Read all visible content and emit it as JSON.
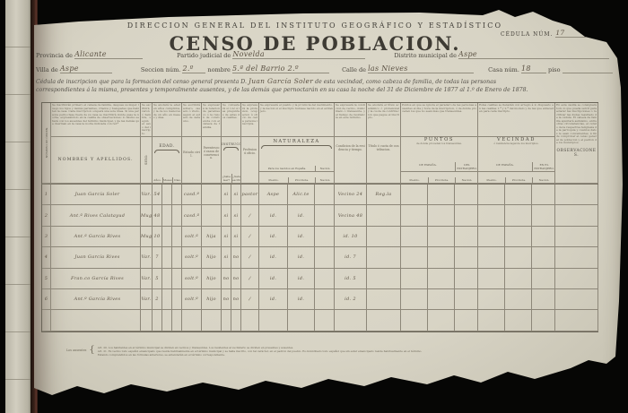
{
  "header": {
    "agency": "DIRECCION GENERAL DEL INSTITUTO GEOGRÁFICO Y ESTADÍSTICO",
    "title": "CENSO DE POBLACION.",
    "cedula_label": "CÉDULA NÚM.",
    "cedula_value": "17"
  },
  "fields": {
    "provincia_label": "Provincia de",
    "provincia_value": "Alicante",
    "partido_label": "Partido judicial de",
    "partido_value": "Novelda",
    "distrito_label": "Distrito municipal de",
    "distrito_value": "Aspe",
    "villa_label": "Villa de",
    "villa_value": "Aspe",
    "seccion_label": "Seccion núm.",
    "seccion_value": "2.º",
    "nombre_label": "nombre",
    "nombre_value": "5.ª del Barrio 2.º",
    "calle_label": "Calle de",
    "calle_value": "las Nieves",
    "casa_label": "Casa núm.",
    "casa_value": "18",
    "piso_label": "piso",
    "piso_value": ""
  },
  "declaration": {
    "line1_pre": "Cédula de inscripcion que para la formacion del censo general presenta D.",
    "name": "Juan García Soler",
    "line1_post": "de esta vecindad, como cabeza de familia, de todas las personas",
    "line2": "correspondientes á la misma, presentes y temporalmente ausentes, y de las demás que pernoctarán en su casa la noche del 31 de Diciembre de 1877 al 1.º de Enero de 1878."
  },
  "table": {
    "head": {
      "num_vert": "NÚMERO DE ÓRDEN.",
      "nombres": "NOMBRES Y APELLIDOS.",
      "sexo": "SEXO.",
      "edad": "EDAD.",
      "anos": "Años.",
      "meses": "Meses.",
      "dias": "Dias.",
      "estado": "Estado civil.",
      "parentesco": "Parentesco ó razon de convivencia.",
      "instruccion": "INSTRUCCION",
      "leer": "¿Sabe leer?",
      "escribir": "¿Sabe escribir?",
      "profesion": "Profesion ú oficio.",
      "naturaleza": "NATURALEZA",
      "nat_espana": "Para los nacidos en España.",
      "nat_pueblo": "Pueblo.",
      "nat_provincia": "Provincia.",
      "nat_nacion": "Nacion.",
      "residencia": "Condicion de la residencia y tiempo.",
      "extra": "Título ó cuota de contribucion.",
      "puntos": "PUNTOS",
      "puntos_sub": "de donde proceden los transeuntes.",
      "p_espana": "DE ESPAÑA.",
      "p_extr": "DEL EXTRANJERO.",
      "p_pueblo": "Pueblo.",
      "p_provincia": "Provincia.",
      "p_nacion": "Nacion.",
      "vecindad": "VECINDAD",
      "vecindad_sub": "ó residencia legal de los inscriptos.",
      "v_espana": "DE ESPAÑA.",
      "v_extr": "EN EL EXTRANJERO.",
      "v_pueblo": "Pueblo.",
      "v_provincia": "Provincia.",
      "v_nacion": "Nacion.",
      "observaciones": "OBSERVACIONES."
    },
    "instructions": {
      "nombres": "Se inscribirán primero el cabeza de familia, despues su mujer, luego los hijos y demás parientes, criados y huéspedes que habiten la casa. Cada inscripcion ocupará una sola línea. Si una persona pernoctase fuera de su casa se inscribirá donde pase la noche, expresándolo en la casilla de observaciones; lo mismo se hará con los ausentes del término municipal, y de las demás que duerman en la casa la noche indicada con ref.ª",
      "sexo": "Se escribirá varon ó hembra, segun el sexo del inscripto.",
      "edad": "Se anotará la edad en años cumplidos, y la de los menores de un año en meses y dias.",
      "estado": "Se escribirá soltero, casado ó viudo, segun el estado de cada uno.",
      "parentesco": "Se expresará la relacion de parentesco ó la razon de convivencia con el cabeza de familia.",
      "instruccion": "Se contestará sí ó nó á las preguntas de estas dos casillas.",
      "profesion": "Se expresará la profesion, ocupacion ú oficio de cada persona inscripta.",
      "naturaleza": "Se expresará el pueblo y la provincia del nacimiento, y la nacion si el inscripto hubiese nacido en el extranjero.",
      "residencia": "Se expresará la condicion de vecino, domiciliado ó transeunte, y el tiempo de residencia en este término.",
      "extra": "Se anotará el título académico ó profesional y la cuota de contribucion que pague el inscripto.",
      "puntos": "Puntos en que se ignora el paradero de las personas ausentes el dia y hora de la inscripcion, ó de donde proceden los que no sean más que transeuntes.",
      "vecindad": "Estas casillas se llenarán con arreglo á lo dispuesto en las casillas 1.ª y 2.ª del modelo y de las que anteceden para cada inscripto.",
      "observaciones": "En esta casilla se consignará todo lo que pueda servir para aclarar las inscripciones ó rectificar las dudas resultado de la cédula. El cabeza de familia apuntará asimismo, entre otras circunstancias, el curato de la respectiva feligresía de la parroquia y cuantos datos le sean convenientes, á fin de comprobar el censo general de poblacion y el padron de los municipios."
    },
    "rows": [
      {
        "cells": [
          "1",
          "Juan García Soler",
          "Var.",
          "54",
          "",
          "",
          "casd.º",
          "",
          "si",
          "si",
          "pastor",
          "Aspe",
          "Alic.te",
          "",
          "Vecino 24",
          "Reg.la",
          "",
          "",
          "",
          "",
          "",
          "",
          ""
        ]
      },
      {
        "cells": [
          "2",
          "Ant.ª Rives Calatayud",
          "Mug.",
          "48",
          "",
          "",
          "casd.ª",
          "",
          "si",
          "si",
          "∕",
          "id.",
          "id.",
          "",
          "Vecina 48",
          "",
          "",
          "",
          "",
          "",
          "",
          "",
          ""
        ]
      },
      {
        "cells": [
          "3",
          "Ant.ª García Rives",
          "Mug.",
          "10",
          "",
          "",
          "solt.ª",
          "hija",
          "si",
          "si",
          "∕",
          "id.",
          "id.",
          "",
          "id.  10",
          "",
          "",
          "",
          "",
          "",
          "",
          "",
          ""
        ]
      },
      {
        "cells": [
          "4",
          "Juan García Rives",
          "Var.",
          "7",
          "",
          "",
          "solt.º",
          "hijo",
          "si",
          "no",
          "∕",
          "id.",
          "id.",
          "",
          "id.  7",
          "",
          "",
          "",
          "",
          "",
          "",
          "",
          ""
        ]
      },
      {
        "cells": [
          "5",
          "Fran.co García Rives",
          "Var.",
          "5",
          "",
          "",
          "solt.º",
          "hijo",
          "no",
          "no",
          "∕",
          "id.",
          "id.",
          "",
          "id.  5",
          "",
          "",
          "",
          "",
          "",
          "",
          "",
          ""
        ]
      },
      {
        "cells": [
          "6",
          "Ant.º García Rives",
          "Var.",
          "2",
          "",
          "",
          "solt.º",
          "hijo",
          "no",
          "no",
          "∕",
          "id.",
          "id.",
          "",
          "id.  2",
          "",
          "",
          "",
          "",
          "",
          "",
          "",
          ""
        ]
      },
      {
        "cells": [
          "",
          "",
          "",
          "",
          "",
          "",
          "",
          "",
          "",
          "",
          "",
          "",
          "",
          "",
          "",
          "",
          "",
          "",
          "",
          "",
          "",
          "",
          ""
        ]
      }
    ]
  },
  "footnotes": {
    "label": "Los ausentes",
    "brace": "{",
    "line1": "Art. 20.  Los habitantes en el término municipal se dividen en vecinos y transeuntes. Los residentes al vecindario se dividen en presentes y ausentes.",
    "line2": "Art. 21.  Es vecino todo español emancipado que reside habitualmente en el término municipal y se halla inscrito, con tal carácter, en el padron del pueblo. Es domiciliado todo español que sin estar emancipado reside habitualmente en el término.",
    "line3": "Estando comprendidos en las fórmulas anteriores, se entenderán en el término correspondiente."
  }
}
